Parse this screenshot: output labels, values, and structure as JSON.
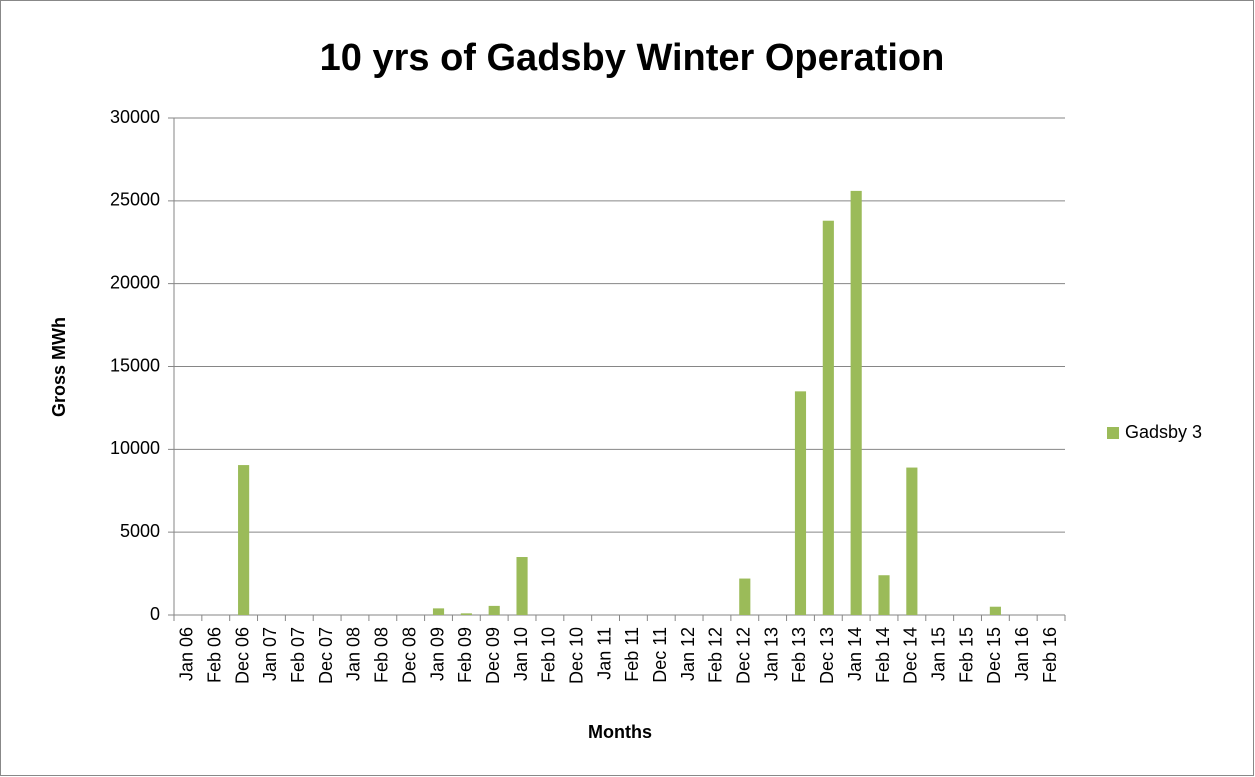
{
  "chart_data": {
    "type": "bar",
    "title": "10 yrs of Gadsby Winter Operation",
    "x_label": "Months",
    "y_label": "Gross MWh",
    "categories": [
      "Jan 06",
      "Feb 06",
      "Dec 06",
      "Jan 07",
      "Feb 07",
      "Dec 07",
      "Jan 08",
      "Feb 08",
      "Dec 08",
      "Jan 09",
      "Feb 09",
      "Dec 09",
      "Jan 10",
      "Feb 10",
      "Dec 10",
      "Jan 11",
      "Feb 11",
      "Dec 11",
      "Jan 12",
      "Feb 12",
      "Dec 12",
      "Jan 13",
      "Feb 13",
      "Dec 13",
      "Jan 14",
      "Feb 14",
      "Dec 14",
      "Jan 15",
      "Feb 15",
      "Dec 15",
      "Jan 16",
      "Feb 16"
    ],
    "series": [
      {
        "name": "Gadsby 3",
        "color": "#9bbb59",
        "values": [
          0,
          0,
          9050,
          0,
          0,
          0,
          0,
          0,
          0,
          400,
          100,
          550,
          3500,
          0,
          0,
          0,
          0,
          0,
          0,
          0,
          2200,
          0,
          13500,
          23800,
          25600,
          2400,
          8900,
          0,
          0,
          500,
          0,
          0
        ]
      }
    ],
    "ylim": [
      0,
      30000
    ],
    "yticks": [
      0,
      5000,
      10000,
      15000,
      20000,
      25000,
      30000
    ],
    "grid": true,
    "legend": "right"
  }
}
